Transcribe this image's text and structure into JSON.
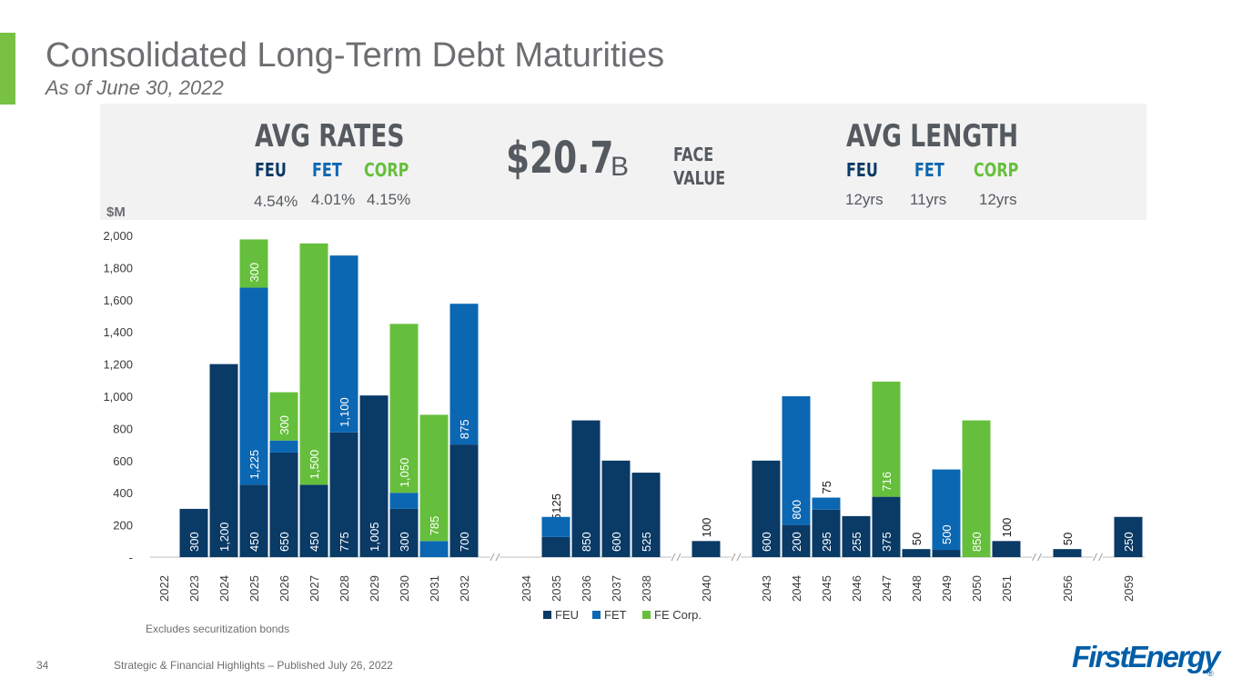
{
  "title": "Consolidated Long-Term Debt Maturities",
  "subtitle": "As of June 30, 2022",
  "colors": {
    "feu": "#0a3a66",
    "fet": "#0b67b2",
    "corp": "#66bf3c",
    "accent": "#79c143",
    "text_gray": "#6d6e71",
    "logo_blue": "#005ea8"
  },
  "stats": {
    "avg_rates": {
      "heading": "AVG RATES",
      "labels": [
        "FEU",
        "FET",
        "CORP"
      ],
      "values": [
        "4.54%",
        "4.01%",
        "4.15%"
      ]
    },
    "face_value": {
      "amount": "$20.7",
      "unit": "B",
      "label_line1": "FACE",
      "label_line2": "VALUE"
    },
    "avg_length": {
      "heading": "AVG LENGTH",
      "labels": [
        "FEU",
        "FET",
        "CORP"
      ],
      "values": [
        "12yrs",
        "11yrs",
        "12yrs"
      ]
    }
  },
  "chart_data": {
    "type": "bar",
    "stacked": true,
    "ylabel": "$M",
    "ylim": [
      0,
      2000
    ],
    "yticks": [
      0,
      200,
      400,
      600,
      800,
      1000,
      1200,
      1400,
      1600,
      1800,
      2000
    ],
    "ytick_labels": [
      "-",
      "200",
      "400",
      "600",
      "800",
      "1,000",
      "1,200",
      "1,400",
      "1,600",
      "1,800",
      "2,000"
    ],
    "categories": [
      "2022",
      "2023",
      "2024",
      "2025",
      "2026",
      "2027",
      "2028",
      "2029",
      "2030",
      "2031",
      "2032",
      "2034",
      "2035",
      "2036",
      "2037",
      "2038",
      "2040",
      "2043",
      "2044",
      "2045",
      "2046",
      "2047",
      "2048",
      "2049",
      "2050",
      "2051",
      "2056",
      "2059"
    ],
    "axis_breaks_after": [
      "2032",
      "2038",
      "2040",
      "2051",
      "2056"
    ],
    "series": [
      {
        "name": "FEU",
        "values": [
          0,
          300,
          1200,
          450,
          650,
          450,
          775,
          1005,
          300,
          0,
          700,
          0,
          125,
          850,
          600,
          525,
          100,
          600,
          200,
          295,
          255,
          375,
          50,
          45,
          0,
          100,
          50,
          250
        ]
      },
      {
        "name": "FET",
        "values": [
          0,
          0,
          0,
          1225,
          75,
          0,
          1100,
          0,
          100,
          100,
          875,
          0,
          125,
          0,
          0,
          0,
          0,
          0,
          800,
          75,
          0,
          0,
          0,
          500,
          0,
          0,
          0,
          0
        ]
      },
      {
        "name": "FE Corp.",
        "values": [
          0,
          0,
          0,
          300,
          300,
          1500,
          0,
          0,
          1050,
          785,
          0,
          0,
          0,
          0,
          0,
          0,
          0,
          0,
          0,
          0,
          0,
          716,
          0,
          0,
          850,
          0,
          0,
          0
        ]
      }
    ],
    "legend": [
      "FEU",
      "FET",
      "FE Corp."
    ],
    "legend_position": "bottom-center"
  },
  "footnote": "Excludes securitization bonds",
  "footer": {
    "page_number": "34",
    "text": "Strategic & Financial Highlights – Published July 26, 2022"
  },
  "logo": "FirstEnergy"
}
